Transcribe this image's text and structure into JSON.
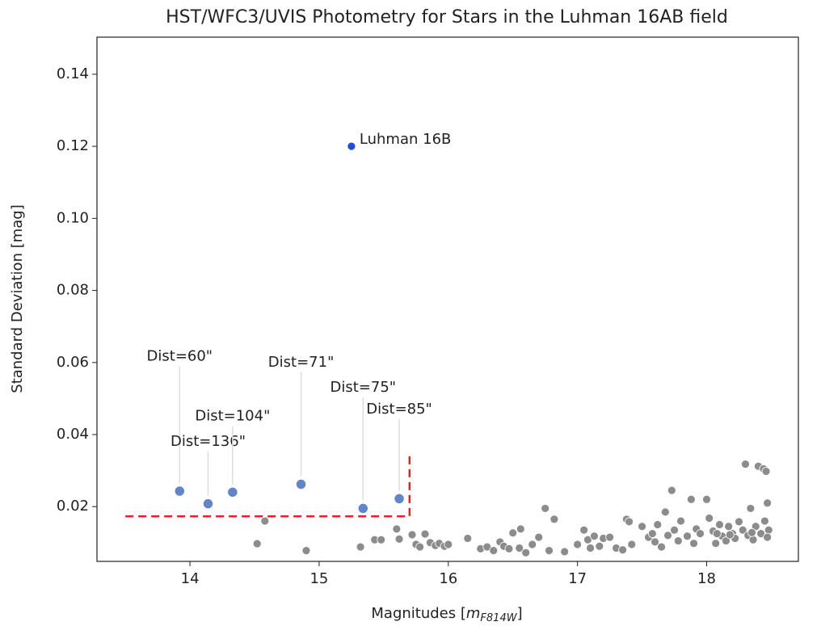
{
  "chart_data": {
    "type": "scatter",
    "title": "HST/WFC3/UVIS Photometry for Stars in the Luhman 16AB field",
    "xlabel_parts": [
      "Magnitudes [",
      "m",
      "F814W",
      "]"
    ],
    "ylabel": "Standard Deviation [mag]",
    "xlim": [
      13.28,
      18.71
    ],
    "ylim": [
      0.0048,
      0.1503
    ],
    "xticks": [
      14,
      15,
      16,
      17,
      18
    ],
    "yticks": [
      0.02,
      0.04,
      0.06,
      0.08,
      {
        "value": 0.1,
        "label": "0.10"
      },
      0.12,
      0.14
    ],
    "grid": false,
    "series": [
      {
        "color": "#8c8c8c",
        "x": [
          14.52,
          14.58,
          14.9,
          15.32,
          15.43,
          15.48,
          15.6,
          15.62,
          15.72,
          15.75,
          15.78,
          15.82,
          15.86,
          15.9,
          15.93,
          15.97,
          16.0,
          16.15,
          16.25,
          16.3,
          16.35,
          16.4,
          16.43,
          16.47,
          16.5,
          16.55,
          16.56,
          16.6,
          16.65,
          16.7,
          16.75,
          16.78,
          16.82,
          16.9,
          17.0,
          17.05,
          17.08,
          17.1,
          17.13,
          17.17,
          17.2,
          17.25,
          17.3,
          17.35,
          17.38,
          17.4,
          17.42,
          17.5,
          17.55,
          17.58,
          17.6,
          17.62,
          17.65,
          17.68,
          17.7,
          17.73,
          17.75,
          17.78,
          17.8,
          17.85,
          17.88,
          17.9,
          17.92,
          17.95,
          18.0,
          18.02,
          18.05,
          18.07,
          18.1,
          18.12,
          18.15,
          18.17,
          18.2,
          18.22,
          18.25,
          18.28,
          18.3,
          18.32,
          18.34,
          18.36,
          18.38,
          18.4,
          18.42,
          18.44,
          18.45,
          18.46,
          18.47,
          18.48,
          18.47,
          18.35,
          18.18,
          18.08
        ],
        "values": [
          0.0097,
          0.016,
          0.0078,
          0.0088,
          0.0108,
          0.0108,
          0.0138,
          0.011,
          0.0122,
          0.0095,
          0.0088,
          0.0124,
          0.01,
          0.0092,
          0.0098,
          0.009,
          0.0095,
          0.0112,
          0.0083,
          0.0088,
          0.0078,
          0.0102,
          0.009,
          0.0083,
          0.0127,
          0.0085,
          0.0138,
          0.0072,
          0.0095,
          0.0115,
          0.0195,
          0.0078,
          0.0165,
          0.0075,
          0.0095,
          0.0135,
          0.0108,
          0.0085,
          0.0118,
          0.009,
          0.0112,
          0.0115,
          0.0085,
          0.008,
          0.0165,
          0.0158,
          0.0095,
          0.0145,
          0.0115,
          0.0125,
          0.0102,
          0.015,
          0.0088,
          0.0185,
          0.012,
          0.0245,
          0.0135,
          0.0105,
          0.016,
          0.0118,
          0.022,
          0.0098,
          0.0138,
          0.0125,
          0.022,
          0.0168,
          0.0132,
          0.0098,
          0.015,
          0.0118,
          0.0105,
          0.0145,
          0.0125,
          0.0112,
          0.0158,
          0.0135,
          0.0318,
          0.012,
          0.0195,
          0.0108,
          0.0145,
          0.0312,
          0.0125,
          0.0305,
          0.016,
          0.0298,
          0.021,
          0.0135,
          0.0115,
          0.0128,
          0.0122,
          0.0125
        ]
      },
      {
        "color": "#6285c8",
        "x": [
          13.92,
          14.14,
          14.33,
          14.86,
          15.34,
          15.62
        ],
        "values": [
          0.0243,
          0.0208,
          0.024,
          0.0262,
          0.0195,
          0.0222
        ],
        "labels": [
          "Dist=60\"",
          "Dist=136\"",
          "Dist=104\"",
          "Dist=71\"",
          "Dist=75\"",
          "Dist=85\""
        ],
        "label_y": [
          0.0616,
          0.038,
          0.045,
          0.06,
          0.053,
          0.047
        ]
      },
      {
        "name": "Luhman 16B",
        "color": "#1f4fd8",
        "x": [
          15.25
        ],
        "values": [
          0.12
        ]
      }
    ],
    "threshold_x": [
      13.5,
      15.7
    ],
    "threshold_y": [
      0.0173,
      0.035
    ],
    "threshold_color": "#e8231f"
  }
}
